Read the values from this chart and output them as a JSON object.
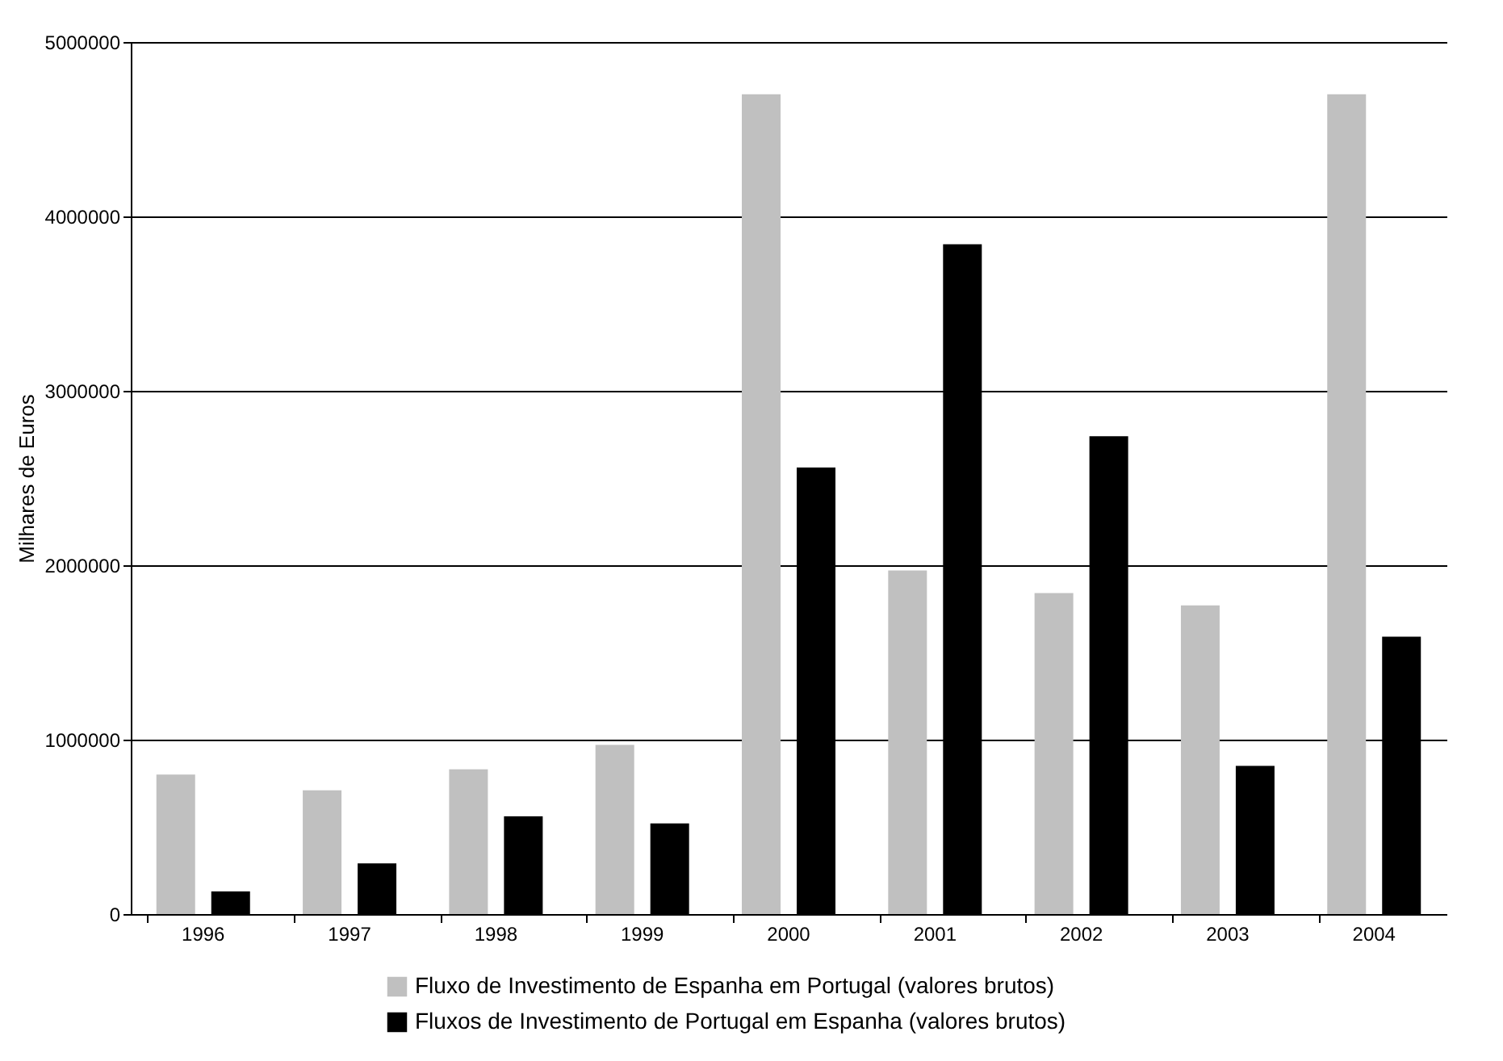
{
  "chart_data": {
    "type": "bar",
    "ylabel": "Milhares de Euros",
    "categories": [
      "1996",
      "1997",
      "1998",
      "1999",
      "2000",
      "2001",
      "2002",
      "2003",
      "2004"
    ],
    "series": [
      {
        "name": "Fluxo de Investimento de Espanha em Portugal (valores brutos)",
        "color": "#c0c0c0",
        "values": [
          800000,
          710000,
          830000,
          970000,
          4700000,
          1970000,
          1840000,
          1770000,
          4700000
        ]
      },
      {
        "name": "Fluxos de Investimento de Portugal em Espanha (valores brutos)",
        "color": "#000000",
        "values": [
          130000,
          290000,
          560000,
          520000,
          2560000,
          3840000,
          2740000,
          850000,
          1590000
        ]
      }
    ],
    "ylim": [
      0,
      5000000
    ],
    "yticks": [
      0,
      1000000,
      2000000,
      3000000,
      4000000,
      5000000
    ],
    "grid": "y",
    "legend": "bottom right"
  }
}
